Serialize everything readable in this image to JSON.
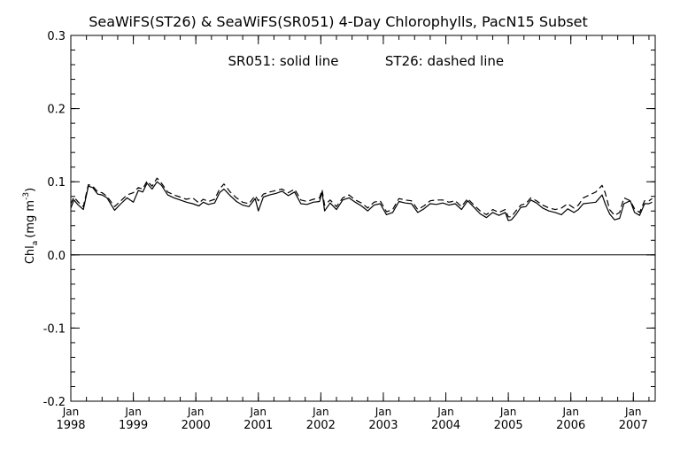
{
  "chart_data": {
    "type": "line",
    "title": "SeaWiFS(ST26) & SeaWiFS(SR051) 4-Day Chlorophylls, PacN15 Subset",
    "annotation_solid": "SR051: solid line",
    "annotation_dashed": "ST26: dashed line",
    "ylabel_main": "Chl",
    "ylabel_sub": "a",
    "ylabel_unit": "(mg m",
    "ylabel_sup": "-3",
    "ylabel_close": ")",
    "ylim": [
      -0.2,
      0.3
    ],
    "xlim": [
      1998.0,
      2007.35
    ],
    "yticks": [
      -0.2,
      -0.1,
      0.0,
      0.1,
      0.2,
      0.3
    ],
    "ytick_labels": [
      "-0.2",
      "-0.1",
      "0.0",
      "0.1",
      "0.2",
      "0.3"
    ],
    "xticks": [
      1998,
      1999,
      2000,
      2001,
      2002,
      2003,
      2004,
      2005,
      2006,
      2007
    ],
    "xtick_month": "Jan",
    "xtick_years": [
      "1998",
      "1999",
      "2000",
      "2001",
      "2002",
      "2003",
      "2004",
      "2005",
      "2006",
      "2007"
    ],
    "zero_line": 0.0,
    "grid": false,
    "series": [
      {
        "name": "SR051",
        "style": "solid",
        "color": "#000000",
        "x": [
          1998.0,
          1998.05,
          1998.12,
          1998.2,
          1998.28,
          1998.35,
          1998.43,
          1998.5,
          1998.58,
          1998.7,
          1998.8,
          1998.9,
          1999.0,
          1999.08,
          1999.15,
          1999.22,
          1999.3,
          1999.38,
          1999.45,
          1999.55,
          1999.65,
          1999.75,
          1999.85,
          1999.95,
          2000.05,
          2000.12,
          2000.2,
          2000.3,
          2000.38,
          2000.45,
          2000.55,
          2000.65,
          2000.75,
          2000.85,
          2000.95,
          2001.0,
          2001.08,
          2001.18,
          2001.28,
          2001.38,
          2001.48,
          2001.58,
          2001.68,
          2001.78,
          2001.88,
          2001.98,
          2002.02,
          2002.06,
          2002.15,
          2002.25,
          2002.35,
          2002.45,
          2002.55,
          2002.65,
          2002.75,
          2002.85,
          2002.95,
          2003.05,
          2003.15,
          2003.25,
          2003.35,
          2003.45,
          2003.55,
          2003.65,
          2003.75,
          2003.85,
          2003.95,
          2004.05,
          2004.15,
          2004.25,
          2004.35,
          2004.45,
          2004.55,
          2004.65,
          2004.75,
          2004.85,
          2004.95,
          2005.0,
          2005.05,
          2005.12,
          2005.2,
          2005.28,
          2005.36,
          2005.45,
          2005.55,
          2005.65,
          2005.75,
          2005.85,
          2005.95,
          2006.05,
          2006.12,
          2006.2,
          2006.3,
          2006.4,
          2006.5,
          2006.55,
          2006.62,
          2006.7,
          2006.78,
          2006.85,
          2006.95,
          2007.02,
          2007.1,
          2007.18,
          2007.25,
          2007.3
        ],
        "values": [
          0.064,
          0.075,
          0.068,
          0.062,
          0.094,
          0.092,
          0.083,
          0.082,
          0.078,
          0.061,
          0.07,
          0.078,
          0.072,
          0.088,
          0.086,
          0.098,
          0.09,
          0.1,
          0.095,
          0.082,
          0.078,
          0.075,
          0.072,
          0.07,
          0.067,
          0.072,
          0.069,
          0.071,
          0.085,
          0.09,
          0.081,
          0.073,
          0.068,
          0.066,
          0.077,
          0.06,
          0.079,
          0.082,
          0.084,
          0.087,
          0.081,
          0.086,
          0.07,
          0.069,
          0.072,
          0.073,
          0.086,
          0.06,
          0.071,
          0.062,
          0.075,
          0.078,
          0.072,
          0.067,
          0.06,
          0.068,
          0.07,
          0.055,
          0.058,
          0.073,
          0.071,
          0.07,
          0.058,
          0.063,
          0.07,
          0.069,
          0.071,
          0.068,
          0.07,
          0.062,
          0.074,
          0.065,
          0.056,
          0.051,
          0.058,
          0.054,
          0.058,
          0.047,
          0.048,
          0.055,
          0.065,
          0.066,
          0.075,
          0.071,
          0.064,
          0.06,
          0.058,
          0.055,
          0.063,
          0.058,
          0.062,
          0.07,
          0.071,
          0.072,
          0.082,
          0.07,
          0.056,
          0.048,
          0.05,
          0.07,
          0.074,
          0.058,
          0.054,
          0.07,
          0.07,
          0.072
        ]
      },
      {
        "name": "ST26",
        "style": "dashed",
        "color": "#000000",
        "x": [
          1998.0,
          1998.05,
          1998.12,
          1998.2,
          1998.28,
          1998.35,
          1998.43,
          1998.5,
          1998.58,
          1998.7,
          1998.8,
          1998.9,
          1999.0,
          1999.08,
          1999.15,
          1999.22,
          1999.3,
          1999.38,
          1999.45,
          1999.55,
          1999.65,
          1999.75,
          1999.85,
          1999.95,
          2000.05,
          2000.12,
          2000.2,
          2000.3,
          2000.38,
          2000.45,
          2000.55,
          2000.65,
          2000.75,
          2000.85,
          2000.95,
          2001.0,
          2001.08,
          2001.18,
          2001.28,
          2001.38,
          2001.48,
          2001.58,
          2001.68,
          2001.78,
          2001.88,
          2001.98,
          2002.02,
          2002.06,
          2002.15,
          2002.25,
          2002.35,
          2002.45,
          2002.55,
          2002.65,
          2002.75,
          2002.85,
          2002.95,
          2003.05,
          2003.15,
          2003.25,
          2003.35,
          2003.45,
          2003.55,
          2003.65,
          2003.75,
          2003.85,
          2003.95,
          2004.05,
          2004.15,
          2004.25,
          2004.35,
          2004.45,
          2004.55,
          2004.65,
          2004.75,
          2004.85,
          2004.95,
          2005.0,
          2005.05,
          2005.12,
          2005.2,
          2005.28,
          2005.36,
          2005.45,
          2005.55,
          2005.65,
          2005.75,
          2005.85,
          2005.95,
          2006.05,
          2006.12,
          2006.2,
          2006.3,
          2006.4,
          2006.5,
          2006.55,
          2006.62,
          2006.7,
          2006.78,
          2006.85,
          2006.95,
          2007.02,
          2007.1,
          2007.18,
          2007.25,
          2007.3
        ],
        "values": [
          0.07,
          0.079,
          0.072,
          0.066,
          0.096,
          0.094,
          0.086,
          0.085,
          0.08,
          0.066,
          0.074,
          0.082,
          0.085,
          0.092,
          0.09,
          0.101,
          0.094,
          0.105,
          0.098,
          0.086,
          0.082,
          0.079,
          0.076,
          0.078,
          0.071,
          0.076,
          0.073,
          0.076,
          0.09,
          0.097,
          0.086,
          0.078,
          0.072,
          0.07,
          0.081,
          0.074,
          0.083,
          0.086,
          0.088,
          0.09,
          0.085,
          0.09,
          0.075,
          0.073,
          0.076,
          0.078,
          0.089,
          0.068,
          0.075,
          0.066,
          0.078,
          0.082,
          0.075,
          0.071,
          0.064,
          0.072,
          0.074,
          0.059,
          0.062,
          0.077,
          0.075,
          0.074,
          0.062,
          0.067,
          0.074,
          0.075,
          0.075,
          0.072,
          0.074,
          0.066,
          0.077,
          0.068,
          0.06,
          0.055,
          0.062,
          0.058,
          0.062,
          0.052,
          0.052,
          0.06,
          0.068,
          0.07,
          0.078,
          0.074,
          0.068,
          0.064,
          0.062,
          0.064,
          0.07,
          0.064,
          0.068,
          0.078,
          0.082,
          0.086,
          0.095,
          0.085,
          0.062,
          0.054,
          0.058,
          0.078,
          0.074,
          0.063,
          0.058,
          0.074,
          0.074,
          0.077
        ]
      }
    ]
  }
}
